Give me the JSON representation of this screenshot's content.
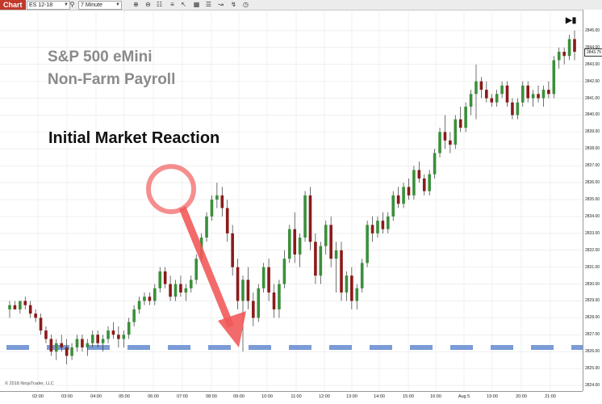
{
  "toolbar": {
    "tab_label": "Chart",
    "instrument": "ES 12-18",
    "interval": "7 Minute",
    "icons": [
      "search-icon",
      "zoom-in-icon",
      "zoom-out-icon",
      "properties-icon",
      "pointer-icon",
      "data-box-icon",
      "strategy-icon",
      "drawing-tool-icon",
      "trade-icon",
      "clock-icon"
    ]
  },
  "chart": {
    "title_line1": "S&P 500 eMini",
    "title_line2": "Non-Farm Payroll",
    "annotation": "Initial Market Reaction",
    "copyright": "© 2018 NinjaTrader, LLC",
    "last_price_label": "2843.75",
    "reference_line_price": 2826.25,
    "colors": {
      "up": "#3b8f3b",
      "down": "#8b1a1a",
      "reference_line": "#7a9bd6",
      "annotation": "#f25a5a"
    }
  },
  "chart_data": {
    "type": "candlestick",
    "ylim": [
      2824,
      2846
    ],
    "y_tick_labels": [
      "2824.00",
      "2825.00",
      "2826.00",
      "2827.00",
      "2828.00",
      "2829.00",
      "2830.00",
      "2831.00",
      "2832.00",
      "2833.00",
      "2834.00",
      "2835.00",
      "2836.00",
      "2837.00",
      "2838.00",
      "2839.00",
      "2840.00",
      "2841.00",
      "2842.00",
      "2843.00",
      "2844.00",
      "2845.00"
    ],
    "x_tick_labels": [
      "02:00",
      "03:00",
      "04:00",
      "05:00",
      "06:00",
      "07:00",
      "08:00",
      "09:00",
      "10:00",
      "11:00",
      "12:00",
      "13:00",
      "14:00",
      "15:00",
      "16:00",
      "Aug 5",
      "19:00",
      "20:00",
      "21:00"
    ],
    "candles": [
      [
        2828.5,
        2829.0,
        2828.0,
        2828.75
      ],
      [
        2828.75,
        2829.0,
        2828.5,
        2828.5
      ],
      [
        2828.5,
        2829.0,
        2828.25,
        2829.0
      ],
      [
        2829.0,
        2829.25,
        2828.5,
        2828.75
      ],
      [
        2828.75,
        2829.0,
        2828.0,
        2828.25
      ],
      [
        2828.25,
        2828.5,
        2827.75,
        2828.0
      ],
      [
        2828.0,
        2828.25,
        2827.0,
        2827.25
      ],
      [
        2827.25,
        2827.5,
        2826.5,
        2826.75
      ],
      [
        2826.75,
        2827.0,
        2825.75,
        2826.0
      ],
      [
        2826.0,
        2826.75,
        2825.5,
        2826.5
      ],
      [
        2826.5,
        2827.0,
        2826.0,
        2826.25
      ],
      [
        2826.25,
        2826.75,
        2825.25,
        2825.75
      ],
      [
        2825.75,
        2826.5,
        2825.5,
        2826.25
      ],
      [
        2826.25,
        2827.0,
        2826.0,
        2826.75
      ],
      [
        2826.75,
        2827.0,
        2826.0,
        2826.25
      ],
      [
        2826.25,
        2826.75,
        2825.75,
        2826.5
      ],
      [
        2826.5,
        2827.25,
        2826.25,
        2827.0
      ],
      [
        2827.0,
        2827.25,
        2826.25,
        2826.5
      ],
      [
        2826.5,
        2827.0,
        2826.0,
        2826.75
      ],
      [
        2826.75,
        2827.5,
        2826.5,
        2827.25
      ],
      [
        2827.25,
        2827.75,
        2826.75,
        2827.0
      ],
      [
        2827.0,
        2827.5,
        2826.25,
        2826.75
      ],
      [
        2826.75,
        2827.25,
        2826.25,
        2827.0
      ],
      [
        2827.0,
        2828.0,
        2826.75,
        2827.75
      ],
      [
        2827.75,
        2828.75,
        2827.5,
        2828.5
      ],
      [
        2828.5,
        2829.25,
        2828.25,
        2829.0
      ],
      [
        2829.0,
        2829.5,
        2828.75,
        2829.25
      ],
      [
        2829.25,
        2829.5,
        2828.75,
        2829.0
      ],
      [
        2829.0,
        2830.0,
        2828.75,
        2829.75
      ],
      [
        2829.75,
        2831.0,
        2829.5,
        2830.75
      ],
      [
        2830.75,
        2831.0,
        2829.75,
        2830.0
      ],
      [
        2830.0,
        2830.5,
        2829.0,
        2829.25
      ],
      [
        2829.25,
        2830.25,
        2829.0,
        2830.0
      ],
      [
        2830.0,
        2830.5,
        2829.25,
        2829.5
      ],
      [
        2829.5,
        2830.0,
        2829.0,
        2829.75
      ],
      [
        2829.75,
        2830.5,
        2829.5,
        2830.25
      ],
      [
        2830.25,
        2831.75,
        2830.0,
        2831.5
      ],
      [
        2831.5,
        2833.0,
        2831.25,
        2832.75
      ],
      [
        2832.75,
        2834.25,
        2832.5,
        2834.0
      ],
      [
        2834.0,
        2835.25,
        2833.75,
        2835.0
      ],
      [
        2835.0,
        2836.0,
        2834.5,
        2835.25
      ],
      [
        2835.25,
        2835.75,
        2834.0,
        2834.5
      ],
      [
        2834.5,
        2835.0,
        2832.5,
        2833.0
      ],
      [
        2833.0,
        2833.5,
        2830.5,
        2831.0
      ],
      [
        2831.0,
        2831.5,
        2828.5,
        2829.0
      ],
      [
        2829.0,
        2830.5,
        2826.0,
        2830.25
      ],
      [
        2830.25,
        2831.0,
        2828.5,
        2829.0
      ],
      [
        2829.0,
        2829.5,
        2827.5,
        2828.0
      ],
      [
        2828.0,
        2830.0,
        2827.75,
        2829.75
      ],
      [
        2829.75,
        2831.25,
        2829.5,
        2831.0
      ],
      [
        2831.0,
        2831.5,
        2829.0,
        2829.5
      ],
      [
        2829.5,
        2830.0,
        2828.0,
        2828.5
      ],
      [
        2828.5,
        2830.25,
        2828.0,
        2830.0
      ],
      [
        2830.0,
        2832.0,
        2829.75,
        2831.5
      ],
      [
        2831.5,
        2833.5,
        2831.25,
        2833.25
      ],
      [
        2833.25,
        2834.25,
        2831.25,
        2831.75
      ],
      [
        2831.75,
        2833.0,
        2831.0,
        2832.75
      ],
      [
        2832.75,
        2835.5,
        2832.5,
        2835.25
      ],
      [
        2835.25,
        2835.75,
        2832.0,
        2832.5
      ],
      [
        2832.5,
        2833.0,
        2830.0,
        2830.5
      ],
      [
        2830.5,
        2832.5,
        2830.0,
        2832.25
      ],
      [
        2832.25,
        2833.75,
        2831.75,
        2833.5
      ],
      [
        2833.5,
        2834.0,
        2831.0,
        2831.5
      ],
      [
        2831.5,
        2832.5,
        2829.5,
        2832.0
      ],
      [
        2832.0,
        2832.5,
        2829.0,
        2829.5
      ],
      [
        2829.5,
        2830.75,
        2829.0,
        2830.5
      ],
      [
        2830.5,
        2831.0,
        2828.5,
        2829.0
      ],
      [
        2829.0,
        2830.0,
        2828.5,
        2829.75
      ],
      [
        2829.75,
        2831.5,
        2829.5,
        2831.25
      ],
      [
        2831.25,
        2833.75,
        2831.0,
        2833.5
      ],
      [
        2833.5,
        2834.0,
        2832.5,
        2833.0
      ],
      [
        2833.0,
        2834.0,
        2832.75,
        2833.75
      ],
      [
        2833.75,
        2834.25,
        2833.0,
        2833.25
      ],
      [
        2833.25,
        2834.25,
        2833.0,
        2834.0
      ],
      [
        2834.0,
        2835.5,
        2833.75,
        2835.25
      ],
      [
        2835.25,
        2835.75,
        2834.5,
        2834.75
      ],
      [
        2834.75,
        2836.0,
        2834.5,
        2835.75
      ],
      [
        2835.75,
        2836.25,
        2835.0,
        2835.25
      ],
      [
        2835.25,
        2837.0,
        2835.0,
        2836.75
      ],
      [
        2836.75,
        2837.25,
        2836.0,
        2836.25
      ],
      [
        2836.25,
        2836.5,
        2835.25,
        2835.5
      ],
      [
        2835.5,
        2836.75,
        2835.25,
        2836.5
      ],
      [
        2836.5,
        2838.0,
        2836.25,
        2837.75
      ],
      [
        2837.75,
        2839.25,
        2837.5,
        2839.0
      ],
      [
        2839.0,
        2840.0,
        2838.0,
        2838.5
      ],
      [
        2838.5,
        2839.0,
        2837.75,
        2838.25
      ],
      [
        2838.25,
        2840.0,
        2838.0,
        2839.75
      ],
      [
        2839.75,
        2840.5,
        2839.0,
        2839.25
      ],
      [
        2839.25,
        2840.75,
        2839.0,
        2840.5
      ],
      [
        2840.5,
        2841.5,
        2840.0,
        2841.25
      ],
      [
        2841.25,
        2843.0,
        2839.75,
        2842.0
      ],
      [
        2842.0,
        2842.25,
        2841.0,
        2841.5
      ],
      [
        2841.5,
        2842.0,
        2840.75,
        2841.0
      ],
      [
        2841.0,
        2841.25,
        2840.5,
        2840.75
      ],
      [
        2840.75,
        2841.5,
        2840.5,
        2841.25
      ],
      [
        2841.25,
        2842.0,
        2841.0,
        2841.75
      ],
      [
        2841.75,
        2842.0,
        2840.5,
        2840.75
      ],
      [
        2840.75,
        2841.0,
        2839.75,
        2840.0
      ],
      [
        2840.0,
        2841.0,
        2839.75,
        2840.75
      ],
      [
        2840.75,
        2842.0,
        2840.5,
        2841.75
      ],
      [
        2841.75,
        2842.0,
        2840.75,
        2841.0
      ],
      [
        2841.0,
        2841.5,
        2840.5,
        2841.25
      ],
      [
        2841.25,
        2841.75,
        2840.75,
        2841.0
      ],
      [
        2841.0,
        2841.75,
        2840.5,
        2841.5
      ],
      [
        2841.5,
        2842.0,
        2841.0,
        2841.25
      ],
      [
        2841.25,
        2843.5,
        2841.0,
        2843.25
      ],
      [
        2843.25,
        2844.0,
        2842.75,
        2843.75
      ],
      [
        2843.75,
        2844.0,
        2843.0,
        2843.5
      ],
      [
        2843.5,
        2844.75,
        2843.25,
        2844.5
      ],
      [
        2844.5,
        2845.0,
        2843.25,
        2843.75
      ]
    ]
  }
}
